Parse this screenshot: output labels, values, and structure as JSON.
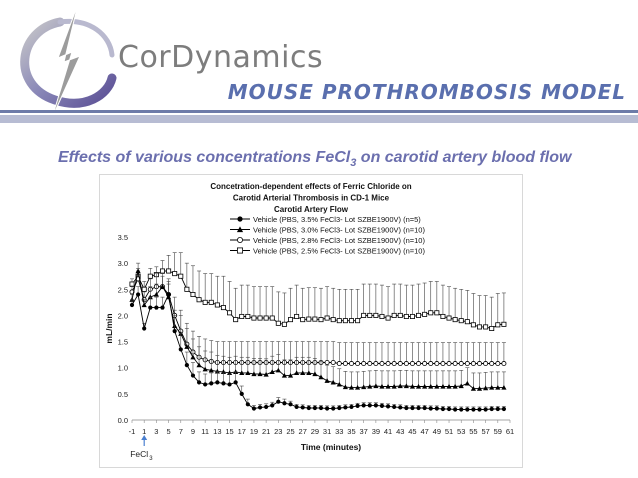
{
  "header": {
    "brand": "CorDynamics",
    "model_title": "MOUSE  PROTHROMBOSIS  MODEL",
    "subtitle_main": "Effects of various concentrations FeCl",
    "subtitle_sub": "3",
    "subtitle_rest": " on carotid artery blood flow"
  },
  "colors": {
    "brand_gray": "#7d7d7d",
    "title_blue": "#5a6fae",
    "subtitle_purple": "#6b6fae",
    "arrow_blue": "#4a7fd0"
  },
  "chart_data": {
    "type": "line",
    "title_lines": [
      "Concetration-dependent effects of Ferric Chloride on",
      "Carotid Arterial Thrombosis in CD-1 Mice",
      "Carotid Artery Flow"
    ],
    "xlabel": "Time (minutes)",
    "ylabel": "mL/min",
    "xlim": [
      -1,
      61
    ],
    "ylim": [
      0,
      3.5
    ],
    "x_ticks": [
      -1,
      1,
      3,
      5,
      7,
      9,
      11,
      13,
      15,
      17,
      19,
      21,
      23,
      25,
      27,
      29,
      31,
      33,
      35,
      37,
      39,
      41,
      43,
      45,
      47,
      49,
      51,
      53,
      55,
      57,
      59,
      61
    ],
    "y_ticks": [
      "0.0",
      "0.5",
      "1.0",
      "1.5",
      "2.0",
      "2.5",
      "3.0",
      "3.5"
    ],
    "annotation": {
      "label": "FeCl",
      "sub": "3",
      "x": 1
    },
    "legend_position": "top-center",
    "grid": false,
    "series": [
      {
        "name": "Vehicle (PBS, 3.5% FeCl3- Lot SZBE1900V) (n=5)",
        "marker": "filled-circle",
        "x": [
          -1,
          0,
          1,
          2,
          3,
          4,
          5,
          6,
          7,
          8,
          9,
          10,
          11,
          12,
          13,
          14,
          15,
          16,
          17,
          18,
          19,
          20,
          21,
          22,
          23,
          24,
          25,
          26,
          27,
          28,
          29,
          30,
          31,
          32,
          33,
          34,
          35,
          36,
          37,
          38,
          39,
          40,
          41,
          42,
          43,
          44,
          45,
          46,
          47,
          48,
          49,
          50,
          51,
          52,
          53,
          54,
          55,
          56,
          57,
          58,
          59,
          60
        ],
        "y": [
          2.2,
          2.4,
          1.75,
          2.15,
          2.15,
          2.15,
          2.4,
          1.7,
          1.35,
          1.05,
          0.85,
          0.72,
          0.68,
          0.7,
          0.72,
          0.7,
          0.68,
          0.72,
          0.5,
          0.3,
          0.22,
          0.24,
          0.25,
          0.28,
          0.35,
          0.32,
          0.3,
          0.25,
          0.24,
          0.23,
          0.23,
          0.23,
          0.22,
          0.22,
          0.23,
          0.24,
          0.25,
          0.27,
          0.28,
          0.28,
          0.28,
          0.27,
          0.26,
          0.25,
          0.24,
          0.23,
          0.23,
          0.23,
          0.23,
          0.22,
          0.22,
          0.21,
          0.21,
          0.2,
          0.2,
          0.2,
          0.2,
          0.2,
          0.2,
          0.21,
          0.21,
          0.21
        ],
        "error": [
          0.1,
          0.15,
          0.1,
          0.2,
          0.2,
          0.2,
          0.25,
          0.3,
          0.3,
          0.25,
          0.25,
          0.2,
          0.2,
          0.2,
          0.2,
          0.2,
          0.2,
          0.2,
          0.15,
          0.1,
          0.06,
          0.06,
          0.06,
          0.06,
          0.08,
          0.08,
          0.06,
          0.05,
          0.05,
          0.05,
          0.05,
          0.05,
          0.05,
          0.05,
          0.05,
          0.05,
          0.05,
          0.05,
          0.05,
          0.05,
          0.05,
          0.05,
          0.05,
          0.05,
          0.05,
          0.05,
          0.05,
          0.05,
          0.05,
          0.05,
          0.05,
          0.05,
          0.05,
          0.05,
          0.05,
          0.05,
          0.05,
          0.05,
          0.05,
          0.05,
          0.05,
          0.05
        ]
      },
      {
        "name": "Vehicle (PBS, 3.0% FeCl3- Lot SZBE1900V) (n=10)",
        "marker": "filled-triangle",
        "x": [
          -1,
          0,
          1,
          2,
          3,
          4,
          5,
          6,
          7,
          8,
          9,
          10,
          11,
          12,
          13,
          14,
          15,
          16,
          17,
          18,
          19,
          20,
          21,
          22,
          23,
          24,
          25,
          26,
          27,
          28,
          29,
          30,
          31,
          32,
          33,
          34,
          35,
          36,
          37,
          38,
          39,
          40,
          41,
          42,
          43,
          44,
          45,
          46,
          47,
          48,
          49,
          50,
          51,
          52,
          53,
          54,
          55,
          56,
          57,
          58,
          59,
          60
        ],
        "y": [
          2.3,
          2.85,
          2.2,
          2.35,
          2.4,
          2.55,
          2.35,
          1.8,
          1.65,
          1.4,
          1.2,
          1.05,
          0.97,
          0.95,
          0.93,
          0.92,
          0.9,
          0.92,
          0.9,
          0.9,
          0.88,
          0.88,
          0.87,
          0.92,
          0.95,
          0.85,
          0.85,
          0.9,
          0.9,
          0.9,
          0.88,
          0.82,
          0.75,
          0.72,
          0.68,
          0.63,
          0.62,
          0.62,
          0.63,
          0.64,
          0.65,
          0.64,
          0.64,
          0.64,
          0.65,
          0.65,
          0.64,
          0.64,
          0.64,
          0.64,
          0.64,
          0.64,
          0.64,
          0.64,
          0.65,
          0.7,
          0.6,
          0.6,
          0.61,
          0.62,
          0.62,
          0.62
        ],
        "error": [
          0.1,
          0.15,
          0.1,
          0.2,
          0.2,
          0.2,
          0.25,
          0.3,
          0.35,
          0.35,
          0.35,
          0.35,
          0.35,
          0.35,
          0.3,
          0.3,
          0.3,
          0.3,
          0.3,
          0.3,
          0.3,
          0.3,
          0.3,
          0.3,
          0.3,
          0.3,
          0.3,
          0.3,
          0.3,
          0.3,
          0.3,
          0.3,
          0.3,
          0.3,
          0.3,
          0.3,
          0.3,
          0.3,
          0.3,
          0.3,
          0.3,
          0.3,
          0.3,
          0.3,
          0.3,
          0.3,
          0.3,
          0.3,
          0.3,
          0.3,
          0.3,
          0.3,
          0.3,
          0.3,
          0.3,
          0.3,
          0.3,
          0.3,
          0.3,
          0.3,
          0.3,
          0.3
        ]
      },
      {
        "name": "Vehicle (PBS, 2.8% FeCl3- Lot SZBE1900V) (n=10)",
        "marker": "open-circle",
        "x": [
          -1,
          0,
          1,
          2,
          3,
          4,
          5,
          6,
          7,
          8,
          9,
          10,
          11,
          12,
          13,
          14,
          15,
          16,
          17,
          18,
          19,
          20,
          21,
          22,
          23,
          24,
          25,
          26,
          27,
          28,
          29,
          30,
          31,
          32,
          33,
          34,
          35,
          36,
          37,
          38,
          39,
          40,
          41,
          42,
          43,
          44,
          45,
          46,
          47,
          48,
          49,
          50,
          51,
          52,
          53,
          54,
          55,
          56,
          57,
          58,
          59,
          60
        ],
        "y": [
          2.45,
          2.7,
          2.3,
          2.5,
          2.55,
          2.55,
          2.4,
          2.0,
          1.7,
          1.45,
          1.3,
          1.2,
          1.15,
          1.12,
          1.1,
          1.1,
          1.1,
          1.1,
          1.1,
          1.1,
          1.1,
          1.1,
          1.1,
          1.1,
          1.1,
          1.1,
          1.1,
          1.1,
          1.1,
          1.1,
          1.1,
          1.1,
          1.1,
          1.1,
          1.08,
          1.08,
          1.08,
          1.08,
          1.08,
          1.08,
          1.08,
          1.08,
          1.08,
          1.08,
          1.08,
          1.08,
          1.08,
          1.08,
          1.08,
          1.08,
          1.08,
          1.08,
          1.08,
          1.08,
          1.08,
          1.08,
          1.08,
          1.08,
          1.08,
          1.08,
          1.08,
          1.08
        ],
        "error": [
          0.1,
          0.15,
          0.15,
          0.2,
          0.25,
          0.25,
          0.3,
          0.35,
          0.4,
          0.4,
          0.4,
          0.4,
          0.4,
          0.4,
          0.4,
          0.4,
          0.4,
          0.4,
          0.4,
          0.4,
          0.4,
          0.4,
          0.4,
          0.4,
          0.4,
          0.4,
          0.4,
          0.4,
          0.4,
          0.4,
          0.4,
          0.4,
          0.4,
          0.4,
          0.4,
          0.4,
          0.4,
          0.4,
          0.4,
          0.4,
          0.4,
          0.4,
          0.4,
          0.4,
          0.4,
          0.4,
          0.4,
          0.4,
          0.4,
          0.4,
          0.4,
          0.4,
          0.4,
          0.4,
          0.4,
          0.4,
          0.4,
          0.4,
          0.4,
          0.4,
          0.4,
          0.4
        ]
      },
      {
        "name": "Vehicle (PBS, 2.5% FeCl3- Lot SZBE1900V) (n=10)",
        "marker": "open-square",
        "x": [
          -1,
          0,
          1,
          2,
          3,
          4,
          5,
          6,
          7,
          8,
          9,
          10,
          11,
          12,
          13,
          14,
          15,
          16,
          17,
          18,
          19,
          20,
          21,
          22,
          23,
          24,
          25,
          26,
          27,
          28,
          29,
          30,
          31,
          32,
          33,
          34,
          35,
          36,
          37,
          38,
          39,
          40,
          41,
          42,
          43,
          44,
          45,
          46,
          47,
          48,
          49,
          50,
          51,
          52,
          53,
          54,
          55,
          56,
          57,
          58,
          59,
          60
        ],
        "y": [
          2.6,
          2.75,
          2.5,
          2.75,
          2.78,
          2.85,
          2.85,
          2.8,
          2.75,
          2.5,
          2.4,
          2.3,
          2.25,
          2.25,
          2.2,
          2.15,
          2.05,
          1.92,
          1.98,
          1.98,
          1.95,
          1.95,
          1.95,
          1.95,
          1.85,
          1.83,
          1.92,
          1.98,
          1.92,
          1.93,
          1.93,
          1.92,
          1.95,
          1.92,
          1.9,
          1.9,
          1.9,
          1.9,
          2.0,
          2.0,
          2.0,
          1.98,
          1.95,
          2.0,
          2.0,
          1.98,
          1.98,
          2.0,
          2.02,
          2.05,
          2.05,
          1.98,
          1.95,
          1.92,
          1.9,
          1.88,
          1.82,
          1.78,
          1.78,
          1.75,
          1.82,
          1.83
        ],
        "error": [
          0.1,
          0.15,
          0.15,
          0.15,
          0.15,
          0.2,
          0.3,
          0.4,
          0.45,
          0.5,
          0.55,
          0.55,
          0.55,
          0.55,
          0.55,
          0.6,
          0.6,
          0.6,
          0.6,
          0.6,
          0.6,
          0.6,
          0.6,
          0.6,
          0.6,
          0.6,
          0.6,
          0.6,
          0.6,
          0.6,
          0.6,
          0.6,
          0.6,
          0.6,
          0.6,
          0.6,
          0.6,
          0.6,
          0.6,
          0.6,
          0.6,
          0.6,
          0.6,
          0.6,
          0.6,
          0.6,
          0.6,
          0.6,
          0.6,
          0.6,
          0.6,
          0.6,
          0.6,
          0.6,
          0.6,
          0.6,
          0.6,
          0.6,
          0.6,
          0.6,
          0.6,
          0.6
        ]
      }
    ]
  }
}
